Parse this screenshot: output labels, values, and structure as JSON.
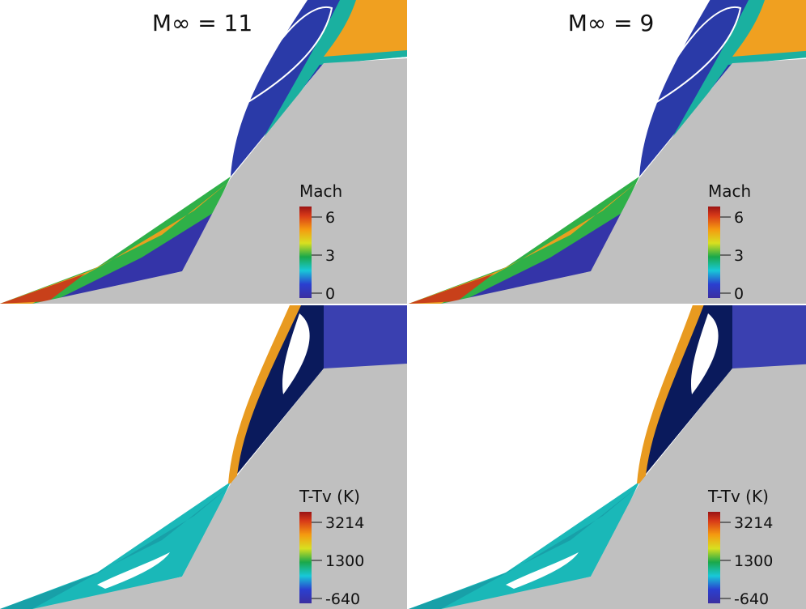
{
  "panels": [
    {
      "title": "M∞ = 11",
      "colorbar": {
        "label": "Mach",
        "ticks": [
          "6",
          "3",
          "0"
        ]
      }
    },
    {
      "title": "M∞ = 9",
      "colorbar": {
        "label": "Mach",
        "ticks": [
          "6",
          "3",
          "0"
        ]
      }
    },
    {
      "colorbar": {
        "label": "T-Tv (K)",
        "ticks": [
          "3214",
          "1300",
          "-640"
        ]
      }
    },
    {
      "colorbar": {
        "label": "T-Tv (K)",
        "ticks": [
          "3214",
          "1300",
          "-640"
        ]
      }
    }
  ]
}
